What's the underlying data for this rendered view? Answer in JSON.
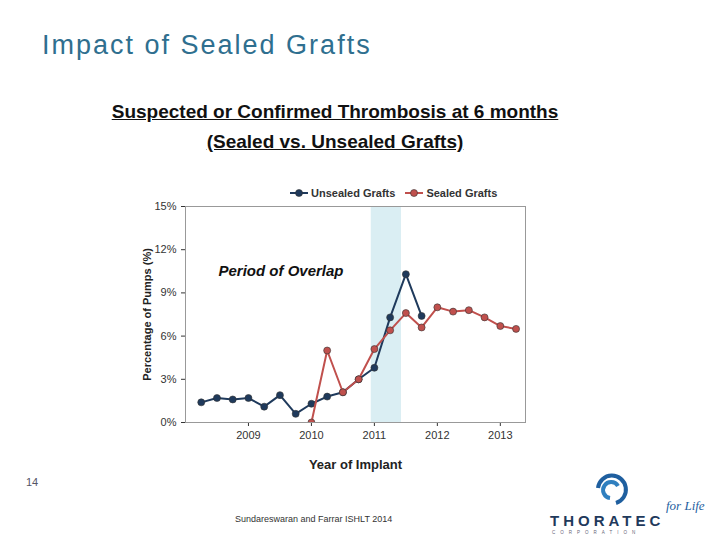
{
  "slide": {
    "title": "Impact of Sealed Grafts",
    "page_number": "14",
    "citation": "Sundareswaran and Farrar ISHLT 2014",
    "logo": {
      "name": "THORATEC",
      "subtitle": "CORPORATION",
      "tagline": "for Life"
    }
  },
  "chart_data": {
    "type": "line",
    "title": "Suspected or Confirmed Thrombosis at 6 months (Sealed vs. Unsealed Grafts)",
    "x_label": "Year of Implant",
    "y_label": "Percentage of Pumps (%)",
    "x": [
      2008.25,
      2008.5,
      2008.75,
      2009,
      2009.25,
      2009.5,
      2009.75,
      2010,
      2010.25,
      2010.5,
      2010.75,
      2011,
      2011.25,
      2011.5,
      2011.75,
      2012,
      2012.25,
      2012.5,
      2012.75,
      2013,
      2013.25
    ],
    "series": [
      {
        "name": "Unsealed Grafts",
        "color": "#1f3a5c",
        "marker": "circle",
        "values": [
          1.4,
          1.7,
          1.6,
          1.7,
          1.1,
          1.9,
          0.6,
          1.3,
          1.8,
          2.1,
          3.0,
          3.8,
          7.3,
          10.3,
          7.4,
          null,
          null,
          null,
          null,
          null,
          null
        ]
      },
      {
        "name": "Sealed Grafts",
        "color": "#c0504d",
        "marker": "circle",
        "values": [
          null,
          null,
          null,
          null,
          null,
          null,
          null,
          0,
          5.0,
          2.1,
          3.0,
          5.1,
          6.4,
          7.6,
          6.6,
          8.0,
          7.7,
          7.8,
          7.3,
          6.7,
          6.5
        ]
      }
    ],
    "annotation": {
      "label": "Period of Overlap",
      "x": [
        2010.95,
        2011.43
      ],
      "color": "#daeef3"
    },
    "xlim": [
      2008,
      2013.4
    ],
    "xticks": [
      2009,
      2010,
      2011,
      2012,
      2013
    ],
    "ylim": [
      0,
      15
    ],
    "yticks": [
      {
        "value": 0,
        "label": "0%"
      },
      {
        "value": 3,
        "label": "3%"
      },
      {
        "value": 6,
        "label": "6%"
      },
      {
        "value": 9,
        "label": "9%"
      },
      {
        "value": 12,
        "label": "12%"
      },
      {
        "value": 15,
        "label": "15%"
      }
    ],
    "grid": false,
    "legend": "top"
  }
}
